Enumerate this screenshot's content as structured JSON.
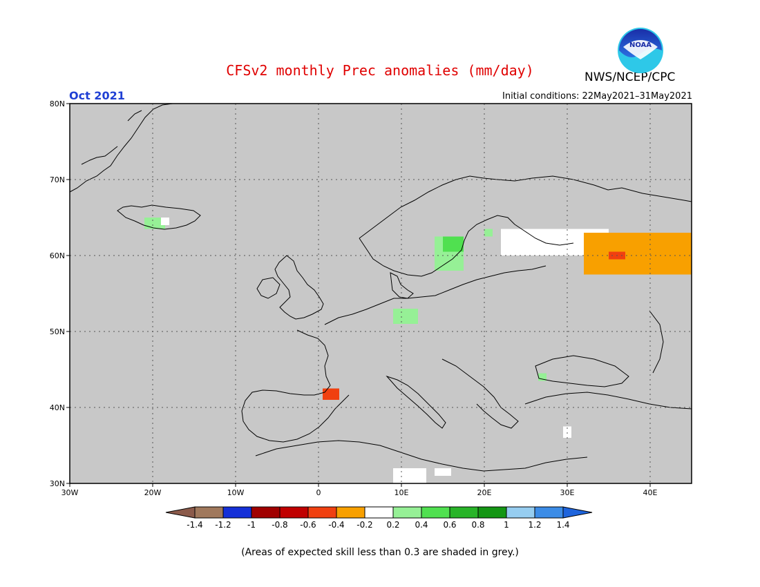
{
  "title": "CFSv2 monthly Prec anomalies (mm/day)",
  "agency": "NWS/NCEP/CPC",
  "logo_text": "NOAA",
  "month": "Oct 2021",
  "initial_conditions": "Initial conditions: 22May2021–31May2021",
  "footnote": "(Areas of expected skill less than 0.3 are shaded in grey.)",
  "map": {
    "lon_range": [
      -30,
      45
    ],
    "lat_range": [
      30,
      80
    ],
    "lat_ticks": [
      "80N",
      "70N",
      "60N",
      "50N",
      "40N",
      "30N"
    ],
    "lon_ticks": [
      "30W",
      "20W",
      "10W",
      "0",
      "10E",
      "20E",
      "30E",
      "40E"
    ],
    "background_color": "#c8c8c8"
  },
  "colorbar": {
    "labels": [
      "-1.4",
      "-1.2",
      "-1",
      "-0.8",
      "-0.6",
      "-0.4",
      "-0.2",
      "0.2",
      "0.4",
      "0.6",
      "0.8",
      "1",
      "1.2",
      "1.4"
    ],
    "colors": [
      "#8b5a4a",
      "#a0785c",
      "#1530d8",
      "#a00000",
      "#c00000",
      "#f04010",
      "#f8a000",
      "#ffffff",
      "#96f096",
      "#50e050",
      "#28b428",
      "#149614",
      "#96cdf0",
      "#3c8ce6",
      "#1e64dc"
    ]
  },
  "anomaly_regions": [
    {
      "name": "iceland-green",
      "color": "#96f096",
      "lon": [
        -21,
        -18.5
      ],
      "lat": [
        63.5,
        65
      ]
    },
    {
      "name": "iceland-white",
      "color": "#ffffff",
      "lon": [
        -19,
        -18
      ],
      "lat": [
        64,
        65
      ]
    },
    {
      "name": "sweden-green",
      "color": "#96f096",
      "lon": [
        14,
        17.5
      ],
      "lat": [
        58,
        62.5
      ]
    },
    {
      "name": "sweden-green-dark",
      "color": "#50e050",
      "lon": [
        15,
        17.5
      ],
      "lat": [
        60.5,
        62.5
      ]
    },
    {
      "name": "finland-green",
      "color": "#96f096",
      "lon": [
        20,
        21
      ],
      "lat": [
        62.5,
        63.5
      ]
    },
    {
      "name": "germany-green",
      "color": "#96f096",
      "lon": [
        9,
        12
      ],
      "lat": [
        51,
        53
      ]
    },
    {
      "name": "russia-white",
      "color": "#ffffff",
      "lon": [
        22,
        35
      ],
      "lat": [
        60,
        63.5
      ]
    },
    {
      "name": "russia-orange",
      "color": "#f8a000",
      "lon": [
        32,
        45
      ],
      "lat": [
        57.5,
        63
      ]
    },
    {
      "name": "russia-red",
      "color": "#f04010",
      "lon": [
        35,
        37
      ],
      "lat": [
        59.5,
        60.5
      ]
    },
    {
      "name": "spain-red",
      "color": "#f04010",
      "lon": [
        0.5,
        2.5
      ],
      "lat": [
        41,
        42.5
      ]
    },
    {
      "name": "romania-green",
      "color": "#96f096",
      "lon": [
        26.5,
        27.5
      ],
      "lat": [
        43.5,
        44.5
      ]
    },
    {
      "name": "crete-white",
      "color": "#ffffff",
      "lon": [
        29.5,
        30.5
      ],
      "lat": [
        36,
        37.5
      ]
    },
    {
      "name": "libya-white",
      "color": "#ffffff",
      "lon": [
        9,
        13
      ],
      "lat": [
        30,
        32
      ]
    },
    {
      "name": "libya-white-2",
      "color": "#ffffff",
      "lon": [
        14,
        16
      ],
      "lat": [
        31,
        32
      ]
    }
  ]
}
